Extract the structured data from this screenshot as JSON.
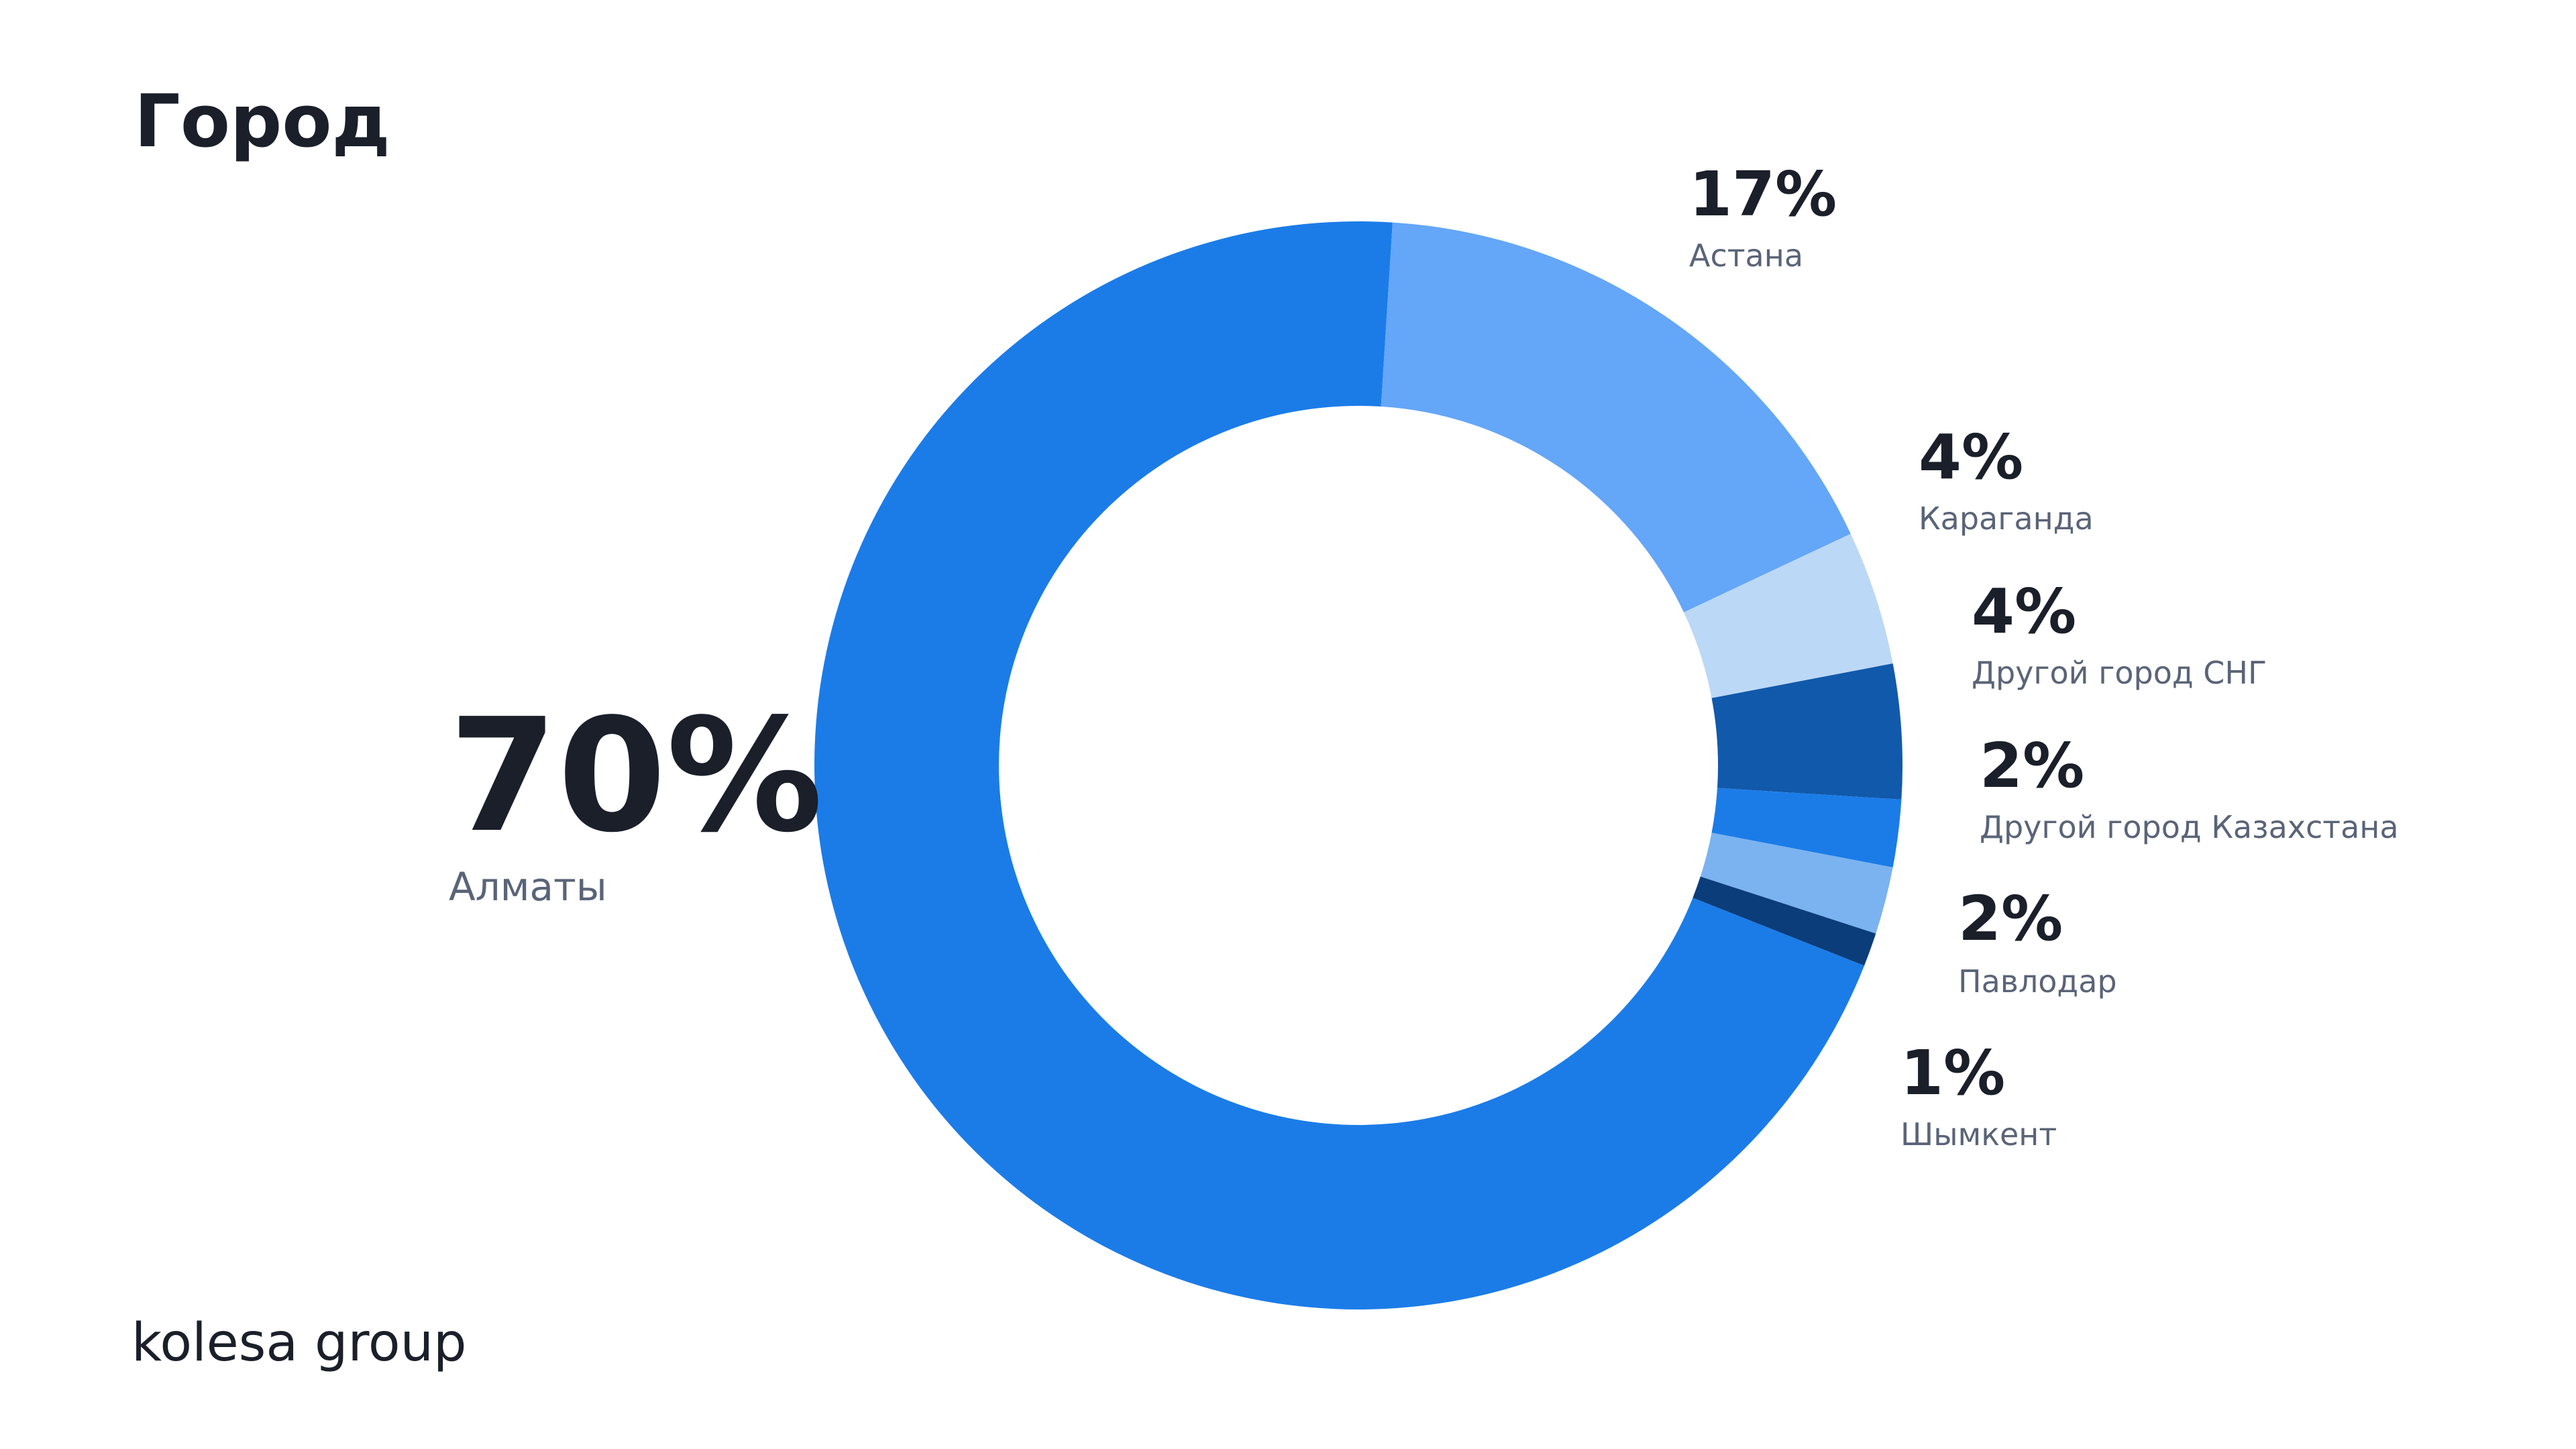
{
  "chart_data": {
    "type": "donut",
    "title": "Город",
    "categories": [
      "Алматы",
      "Астана",
      "Караганда",
      "Другой город СНГ",
      "Другой город Казахстана",
      "Павлодар",
      "Шымкент"
    ],
    "values": [
      70,
      17,
      4,
      4,
      2,
      2,
      1
    ],
    "value_labels": [
      "70%",
      "17%",
      "4%",
      "4%",
      "2%",
      "2%",
      "1%"
    ],
    "colors": [
      "#1b7ce8",
      "#64a6f8",
      "#bcd8f7",
      "#1159ab",
      "#1b7ce8",
      "#7ab3f0",
      "#0b3d7a"
    ]
  },
  "brand": "kolesa group"
}
